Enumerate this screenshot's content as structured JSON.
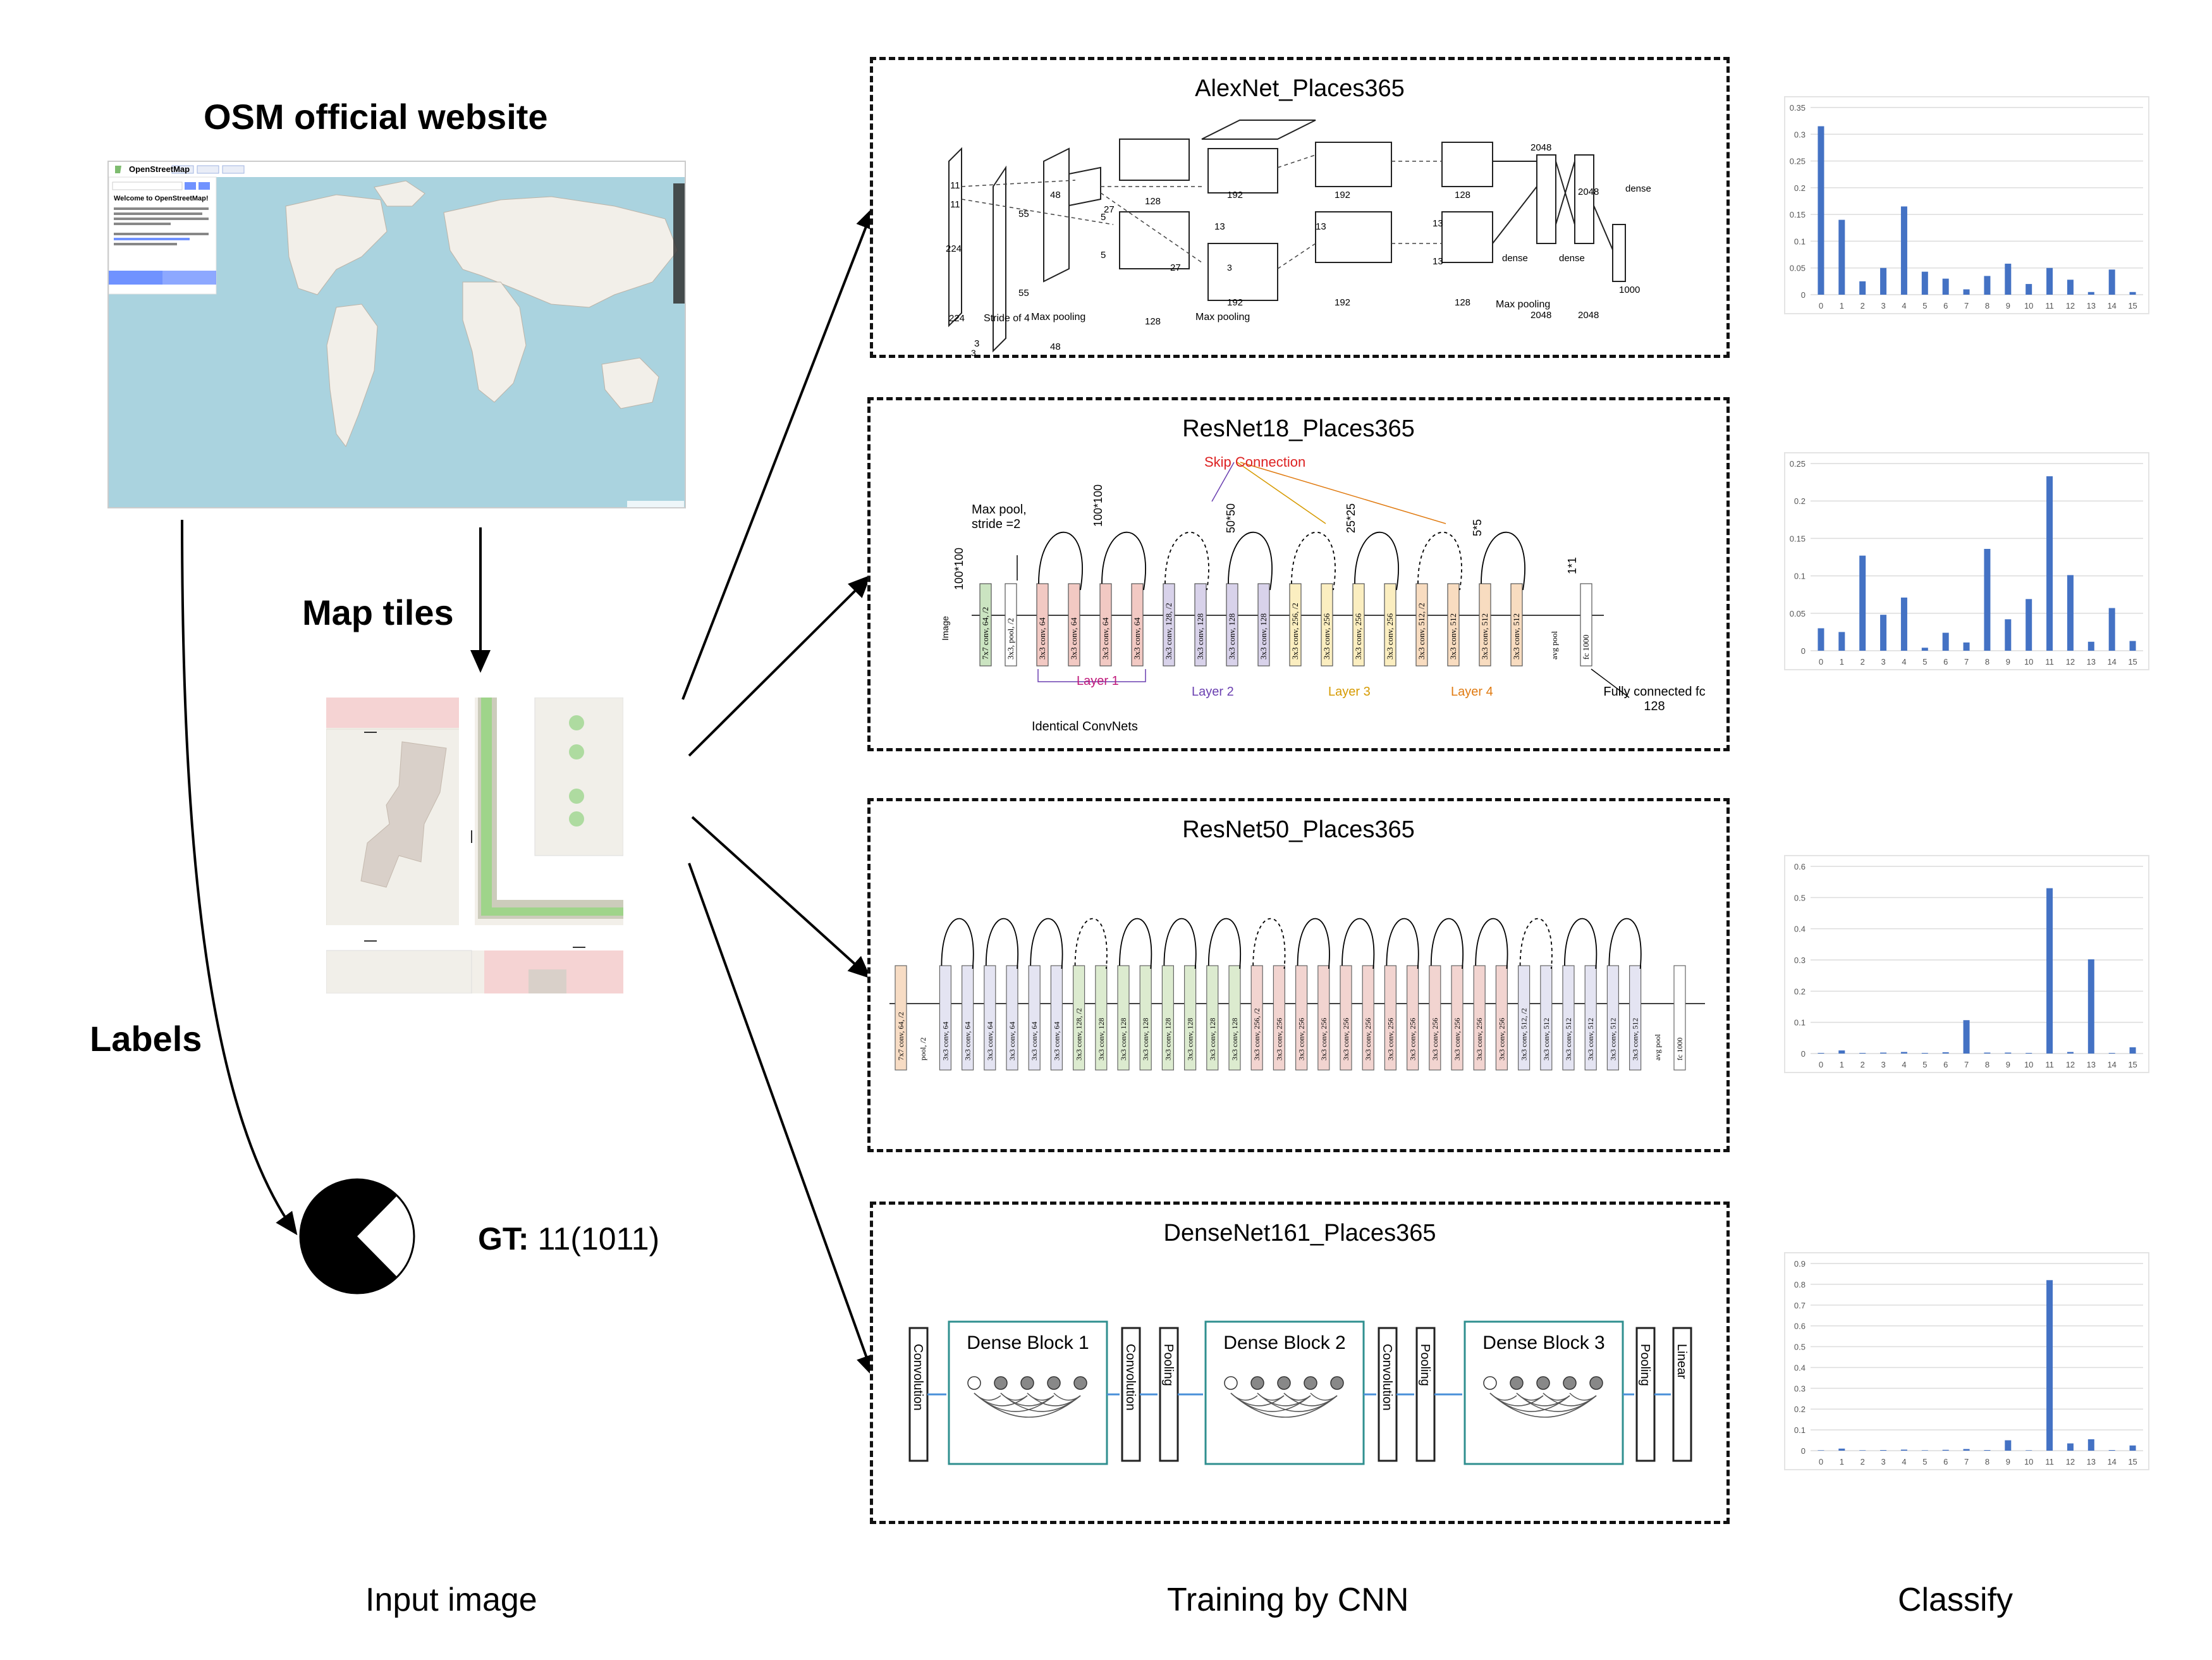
{
  "header": {
    "osm_title": "OSM official website"
  },
  "labels": {
    "map_tiles": "Map tiles",
    "labels": "Labels",
    "gt_prefix": "GT:",
    "gt_value": " 11(1011)"
  },
  "captions": {
    "input": "Input image",
    "training": "Training by CNN",
    "classify": "Classify"
  },
  "osm": {
    "brand": "OpenStreetMap",
    "welcome": "Welcome to OpenStreetMap!"
  },
  "models": [
    {
      "name": "AlexNet_Places365",
      "annot": [
        "224",
        "224",
        "3",
        "11",
        "11",
        "Stride of 4",
        "55",
        "55",
        "48",
        "48",
        "5",
        "5",
        "27",
        "27",
        "128",
        "128",
        "Max pooling",
        "Max pooling",
        "3",
        "3",
        "13",
        "13",
        "192",
        "192",
        "192",
        "192",
        "128",
        "128",
        "13",
        "13",
        "dense",
        "dense",
        "dense",
        "2048",
        "2048",
        "2048",
        "2048",
        "1000",
        "Max pooling"
      ]
    },
    {
      "name": "ResNet18_Places365",
      "skip": "Skip Connection",
      "layers": [
        "Layer 1",
        "Layer 2",
        "Layer 3",
        "Layer 4"
      ],
      "annot": [
        "Max pool, stride =2",
        "100*100",
        "100*100",
        "50*50",
        "25*25",
        "5*5",
        "1*1",
        "Image",
        "Identical ConvNets",
        "Fully connected fc 128"
      ],
      "blocks": [
        "7x7 conv, 64, /2",
        "3x3, pool, /2",
        "3x3 conv, 64",
        "3x3 conv, 64",
        "3x3 conv, 64",
        "3x3 conv, 64",
        "3x3 conv, 128, /2",
        "3x3 conv, 128",
        "3x3 conv, 128",
        "3x3 conv, 128",
        "3x3 conv, 256, /2",
        "3x3 conv, 256",
        "3x3 conv, 256",
        "3x3 conv, 256",
        "3x3 conv, 512, /2",
        "3x3 conv, 512",
        "3x3 conv, 512",
        "3x3 conv, 512",
        "avg pool",
        "fc 1000"
      ]
    },
    {
      "name": "ResNet50_Places365",
      "blocks": [
        "7x7 conv, 64, /2",
        "pool, /2",
        "3x3 conv, 64",
        "3x3 conv, 64",
        "3x3 conv, 64",
        "3x3 conv, 64",
        "3x3 conv, 64",
        "3x3 conv, 64",
        "3x3 conv, 128, /2",
        "3x3 conv, 128",
        "3x3 conv, 128",
        "3x3 conv, 128",
        "3x3 conv, 128",
        "3x3 conv, 128",
        "3x3 conv, 128",
        "3x3 conv, 128",
        "3x3 conv, 256, /2",
        "3x3 conv, 256",
        "3x3 conv, 256",
        "3x3 conv, 256",
        "3x3 conv, 256",
        "3x3 conv, 256",
        "3x3 conv, 256",
        "3x3 conv, 256",
        "3x3 conv, 256",
        "3x3 conv, 256",
        "3x3 conv, 256",
        "3x3 conv, 256",
        "3x3 conv, 512, /2",
        "3x3 conv, 512",
        "3x3 conv, 512",
        "3x3 conv, 512",
        "3x3 conv, 512",
        "3x3 conv, 512",
        "avg pool",
        "fc 1000"
      ]
    },
    {
      "name": "DenseNet161_Places365",
      "dense_blocks": [
        "Dense Block 1",
        "Dense Block 2",
        "Dense Block 3"
      ],
      "ops": [
        "Convolution",
        "Convolution",
        "Pooling",
        "Convolution",
        "Pooling",
        "Pooling",
        "Linear"
      ]
    }
  ],
  "chart_data": [
    {
      "type": "bar",
      "categories": [
        "0",
        "1",
        "2",
        "3",
        "4",
        "5",
        "6",
        "7",
        "8",
        "9",
        "10",
        "11",
        "12",
        "13",
        "14",
        "15"
      ],
      "values": [
        0.315,
        0.14,
        0.025,
        0.05,
        0.165,
        0.043,
        0.03,
        0.01,
        0.035,
        0.058,
        0.02,
        0.05,
        0.028,
        0.005,
        0.047,
        0.005
      ],
      "ylim": [
        0,
        0.35
      ],
      "yticks": [
        "0",
        "0.05",
        "0.1",
        "0.15",
        "0.2",
        "0.25",
        "0.3",
        "0.35"
      ],
      "color": "#4472C4",
      "grid": true
    },
    {
      "type": "bar",
      "categories": [
        "0",
        "1",
        "2",
        "3",
        "4",
        "5",
        "6",
        "7",
        "8",
        "9",
        "10",
        "11",
        "12",
        "13",
        "14",
        "15"
      ],
      "values": [
        0.03,
        0.025,
        0.127,
        0.048,
        0.071,
        0.004,
        0.024,
        0.011,
        0.136,
        0.042,
        0.069,
        0.233,
        0.101,
        0.012,
        0.057,
        0.013
      ],
      "ylim": [
        0,
        0.25
      ],
      "yticks": [
        "0",
        "0.05",
        "0.1",
        "0.15",
        "0.2",
        "0.25"
      ],
      "color": "#4472C4",
      "grid": true
    },
    {
      "type": "bar",
      "categories": [
        "0",
        "1",
        "2",
        "3",
        "4",
        "5",
        "6",
        "7",
        "8",
        "9",
        "10",
        "11",
        "12",
        "13",
        "14",
        "15"
      ],
      "values": [
        0.002,
        0.01,
        0.002,
        0.003,
        0.005,
        0.002,
        0.004,
        0.107,
        0.003,
        0.003,
        0.002,
        0.53,
        0.005,
        0.302,
        0.002,
        0.02
      ],
      "ylim": [
        0,
        0.6
      ],
      "yticks": [
        "0",
        "0.1",
        "0.2",
        "0.3",
        "0.4",
        "0.5",
        "0.6"
      ],
      "color": "#4472C4",
      "grid": true
    },
    {
      "type": "bar",
      "categories": [
        "0",
        "1",
        "2",
        "3",
        "4",
        "5",
        "6",
        "7",
        "8",
        "9",
        "10",
        "11",
        "12",
        "13",
        "14",
        "15"
      ],
      "values": [
        0.002,
        0.01,
        0.002,
        0.003,
        0.005,
        0.002,
        0.004,
        0.008,
        0.003,
        0.05,
        0.002,
        0.82,
        0.035,
        0.055,
        0.003,
        0.025
      ],
      "ylim": [
        0,
        0.9
      ],
      "yticks": [
        "0",
        "0.1",
        "0.2",
        "0.3",
        "0.4",
        "0.5",
        "0.6",
        "0.7",
        "0.8",
        "0.9"
      ],
      "color": "#4472C4",
      "grid": true
    }
  ]
}
